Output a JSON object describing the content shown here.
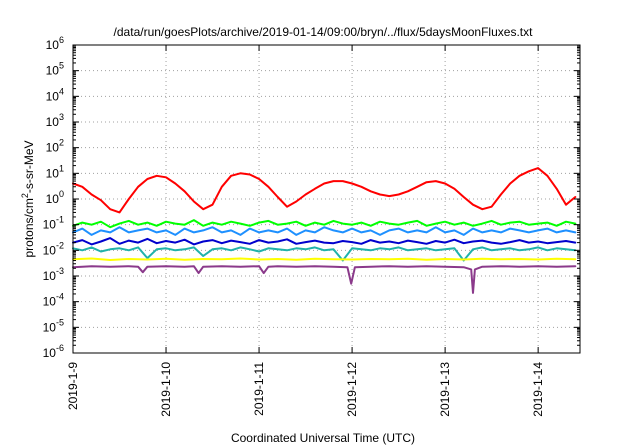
{
  "chart_data": {
    "type": "line",
    "title": "/data/run/goesPlots/archive/2019-01-14/09:00/bryn/../flux/5daysMoonFluxes.txt",
    "xlabel": "Coordinated Universal Time (UTC)",
    "ylabel": "protons/cm²-s-sr-MeV",
    "ylabel_parts": {
      "pre": "protons/cm",
      "sup": "2",
      "post": "-s-sr-MeV"
    },
    "yscale": "log",
    "ylim": [
      1e-06,
      1000000.0
    ],
    "xlim": [
      0,
      5.45
    ],
    "x_unit": "days since 2019-01-09 00:00 UTC",
    "grid": true,
    "legend": "none",
    "x_ticks": [
      {
        "pos": 0,
        "label": "2019-1-9"
      },
      {
        "pos": 1,
        "label": "2019-1-10"
      },
      {
        "pos": 2,
        "label": "2019-1-11"
      },
      {
        "pos": 3,
        "label": "2019-1-12"
      },
      {
        "pos": 4,
        "label": "2019-1-13"
      },
      {
        "pos": 5,
        "label": "2019-1-14"
      }
    ],
    "y_ticks": [
      {
        "exp": -6,
        "label_base": "10",
        "label_exp": "-6"
      },
      {
        "exp": -5,
        "label_base": "10",
        "label_exp": "-5"
      },
      {
        "exp": -4,
        "label_base": "10",
        "label_exp": "-4"
      },
      {
        "exp": -3,
        "label_base": "10",
        "label_exp": "-3"
      },
      {
        "exp": -2,
        "label_base": "10",
        "label_exp": "-2"
      },
      {
        "exp": -1,
        "label_base": "10",
        "label_exp": "-1"
      },
      {
        "exp": 0,
        "label_base": "10",
        "label_exp": "0"
      },
      {
        "exp": 1,
        "label_base": "10",
        "label_exp": "1"
      },
      {
        "exp": 2,
        "label_base": "10",
        "label_exp": "2"
      },
      {
        "exp": 3,
        "label_base": "10",
        "label_exp": "3"
      },
      {
        "exp": 4,
        "label_base": "10",
        "label_exp": "4"
      },
      {
        "exp": 5,
        "label_base": "10",
        "label_exp": "5"
      },
      {
        "exp": 6,
        "label_base": "10",
        "label_exp": "6"
      }
    ],
    "series": [
      {
        "color": "#ff0000",
        "x": [
          0,
          0.1,
          0.2,
          0.3,
          0.4,
          0.5,
          0.6,
          0.7,
          0.8,
          0.9,
          1.0,
          1.1,
          1.2,
          1.3,
          1.4,
          1.5,
          1.6,
          1.7,
          1.8,
          1.9,
          2.0,
          2.1,
          2.2,
          2.3,
          2.4,
          2.5,
          2.6,
          2.7,
          2.8,
          2.9,
          3.0,
          3.1,
          3.2,
          3.3,
          3.4,
          3.5,
          3.6,
          3.7,
          3.8,
          3.9,
          4.0,
          4.1,
          4.2,
          4.3,
          4.4,
          4.5,
          4.6,
          4.7,
          4.8,
          4.9,
          5.0,
          5.1,
          5.2,
          5.3,
          5.4
        ],
        "values": [
          4,
          3,
          1.5,
          0.9,
          0.4,
          0.3,
          1.0,
          3,
          6,
          8,
          7,
          4,
          2,
          0.8,
          0.4,
          0.6,
          3,
          8,
          10,
          9,
          6,
          3,
          1.2,
          0.5,
          0.8,
          1.5,
          2.5,
          4,
          5,
          5,
          4,
          3,
          2,
          1.5,
          1.3,
          1.5,
          2,
          3,
          4.5,
          5,
          4,
          2.5,
          1.2,
          0.6,
          0.4,
          0.5,
          1.5,
          4,
          8,
          12,
          16,
          8,
          2.5,
          0.6,
          1.2
        ]
      },
      {
        "color": "#00ff00",
        "x": [
          0,
          0.1,
          0.2,
          0.3,
          0.4,
          0.5,
          0.6,
          0.7,
          0.8,
          0.9,
          1.0,
          1.1,
          1.2,
          1.3,
          1.4,
          1.5,
          1.6,
          1.7,
          1.8,
          1.9,
          2.0,
          2.1,
          2.2,
          2.3,
          2.4,
          2.5,
          2.6,
          2.7,
          2.8,
          2.9,
          3.0,
          3.1,
          3.2,
          3.3,
          3.4,
          3.5,
          3.6,
          3.7,
          3.8,
          3.9,
          4.0,
          4.1,
          4.2,
          4.3,
          4.4,
          4.5,
          4.6,
          4.7,
          4.8,
          4.9,
          5.0,
          5.1,
          5.2,
          5.3,
          5.4
        ],
        "values": [
          0.09,
          0.12,
          0.1,
          0.13,
          0.08,
          0.11,
          0.14,
          0.1,
          0.12,
          0.09,
          0.13,
          0.11,
          0.1,
          0.15,
          0.09,
          0.12,
          0.1,
          0.13,
          0.11,
          0.09,
          0.12,
          0.14,
          0.1,
          0.11,
          0.13,
          0.09,
          0.12,
          0.1,
          0.14,
          0.11,
          0.1,
          0.12,
          0.09,
          0.13,
          0.11,
          0.1,
          0.12,
          0.14,
          0.09,
          0.11,
          0.13,
          0.1,
          0.12,
          0.09,
          0.11,
          0.14,
          0.1,
          0.12,
          0.13,
          0.1,
          0.11,
          0.12,
          0.09,
          0.13,
          0.11
        ]
      },
      {
        "color": "#1e90ff",
        "x": [
          0,
          0.1,
          0.2,
          0.3,
          0.4,
          0.5,
          0.6,
          0.7,
          0.8,
          0.9,
          1.0,
          1.1,
          1.2,
          1.3,
          1.4,
          1.5,
          1.6,
          1.7,
          1.8,
          1.9,
          2.0,
          2.1,
          2.2,
          2.3,
          2.4,
          2.5,
          2.6,
          2.7,
          2.8,
          2.9,
          3.0,
          3.1,
          3.2,
          3.3,
          3.4,
          3.5,
          3.6,
          3.7,
          3.8,
          3.9,
          4.0,
          4.1,
          4.2,
          4.3,
          4.4,
          4.5,
          4.6,
          4.7,
          4.8,
          4.9,
          5.0,
          5.1,
          5.2,
          5.3,
          5.4
        ],
        "values": [
          0.05,
          0.07,
          0.04,
          0.06,
          0.05,
          0.08,
          0.05,
          0.06,
          0.07,
          0.05,
          0.06,
          0.04,
          0.07,
          0.05,
          0.06,
          0.08,
          0.05,
          0.06,
          0.04,
          0.07,
          0.05,
          0.06,
          0.05,
          0.07,
          0.04,
          0.06,
          0.05,
          0.08,
          0.06,
          0.05,
          0.07,
          0.05,
          0.06,
          0.04,
          0.06,
          0.07,
          0.05,
          0.06,
          0.05,
          0.08,
          0.05,
          0.06,
          0.04,
          0.07,
          0.05,
          0.06,
          0.05,
          0.07,
          0.06,
          0.05,
          0.06,
          0.07,
          0.05,
          0.06,
          0.05
        ]
      },
      {
        "color": "#0000cd",
        "x": [
          0,
          0.1,
          0.2,
          0.3,
          0.4,
          0.5,
          0.6,
          0.7,
          0.8,
          0.9,
          1.0,
          1.1,
          1.2,
          1.3,
          1.4,
          1.5,
          1.6,
          1.7,
          1.8,
          1.9,
          2.0,
          2.1,
          2.2,
          2.3,
          2.4,
          2.5,
          2.6,
          2.7,
          2.8,
          2.9,
          3.0,
          3.1,
          3.2,
          3.3,
          3.4,
          3.5,
          3.6,
          3.7,
          3.8,
          3.9,
          4.0,
          4.1,
          4.2,
          4.3,
          4.4,
          4.5,
          4.6,
          4.7,
          4.8,
          4.9,
          5.0,
          5.1,
          5.2,
          5.3,
          5.4
        ],
        "values": [
          0.02,
          0.025,
          0.017,
          0.022,
          0.03,
          0.018,
          0.024,
          0.02,
          0.028,
          0.019,
          0.023,
          0.02,
          0.026,
          0.017,
          0.022,
          0.025,
          0.019,
          0.024,
          0.021,
          0.018,
          0.025,
          0.02,
          0.022,
          0.027,
          0.018,
          0.021,
          0.024,
          0.02,
          0.019,
          0.023,
          0.021,
          0.018,
          0.025,
          0.02,
          0.022,
          0.019,
          0.024,
          0.021,
          0.018,
          0.023,
          0.02,
          0.026,
          0.019,
          0.022,
          0.024,
          0.02,
          0.018,
          0.021,
          0.025,
          0.02,
          0.022,
          0.019,
          0.021,
          0.023,
          0.02
        ]
      },
      {
        "color": "#20b2aa",
        "x": [
          0,
          0.1,
          0.2,
          0.3,
          0.4,
          0.5,
          0.6,
          0.7,
          0.8,
          0.9,
          1.0,
          1.1,
          1.2,
          1.3,
          1.4,
          1.5,
          1.6,
          1.7,
          1.8,
          1.9,
          2.0,
          2.1,
          2.2,
          2.3,
          2.4,
          2.5,
          2.6,
          2.7,
          2.8,
          2.9,
          3.0,
          3.1,
          3.2,
          3.3,
          3.4,
          3.5,
          3.6,
          3.7,
          3.8,
          3.9,
          4.0,
          4.1,
          4.2,
          4.3,
          4.4,
          4.5,
          4.6,
          4.7,
          4.8,
          4.9,
          5.0,
          5.1,
          5.2,
          5.3,
          5.4
        ],
        "values": [
          0.012,
          0.01,
          0.013,
          0.009,
          0.011,
          0.012,
          0.01,
          0.013,
          0.005,
          0.011,
          0.012,
          0.01,
          0.011,
          0.013,
          0.006,
          0.011,
          0.012,
          0.01,
          0.013,
          0.011,
          0.009,
          0.012,
          0.011,
          0.01,
          0.012,
          0.011,
          0.013,
          0.01,
          0.011,
          0.004,
          0.012,
          0.011,
          0.01,
          0.012,
          0.011,
          0.013,
          0.01,
          0.011,
          0.012,
          0.01,
          0.011,
          0.012,
          0.004,
          0.011,
          0.013,
          0.01,
          0.011,
          0.012,
          0.01,
          0.011,
          0.013,
          0.01,
          0.012,
          0.011,
          0.01
        ]
      },
      {
        "color": "#ffff00",
        "x": [
          0,
          0.2,
          0.4,
          0.6,
          0.8,
          1.0,
          1.2,
          1.4,
          1.6,
          1.8,
          2.0,
          2.2,
          2.4,
          2.6,
          2.8,
          3.0,
          3.2,
          3.4,
          3.6,
          3.8,
          4.0,
          4.2,
          4.4,
          4.6,
          4.8,
          5.0,
          5.2,
          5.4
        ],
        "values": [
          0.0045,
          0.0048,
          0.0042,
          0.0046,
          0.0044,
          0.0047,
          0.0043,
          0.0046,
          0.0045,
          0.0048,
          0.0044,
          0.0046,
          0.0043,
          0.0047,
          0.0045,
          0.0044,
          0.0046,
          0.0045,
          0.0047,
          0.0043,
          0.0046,
          0.0044,
          0.0047,
          0.0045,
          0.0046,
          0.0044,
          0.0047,
          0.0045
        ]
      },
      {
        "color": "#8b3a8b",
        "x": [
          0,
          0.2,
          0.4,
          0.6,
          0.7,
          0.75,
          0.8,
          1.0,
          1.2,
          1.3,
          1.35,
          1.4,
          1.6,
          1.8,
          2.0,
          2.05,
          2.1,
          2.2,
          2.4,
          2.6,
          2.8,
          2.95,
          2.99,
          3.03,
          3.2,
          3.4,
          3.6,
          3.8,
          4.0,
          4.2,
          4.28,
          4.3,
          4.32,
          4.4,
          4.6,
          4.8,
          5.0,
          5.2,
          5.4
        ],
        "values": [
          0.0022,
          0.0024,
          0.0023,
          0.0024,
          0.0023,
          0.0014,
          0.0023,
          0.0024,
          0.0023,
          0.0024,
          0.0013,
          0.0023,
          0.0024,
          0.0023,
          0.0024,
          0.0013,
          0.0023,
          0.0024,
          0.0023,
          0.0024,
          0.0023,
          0.0022,
          0.0005,
          0.0022,
          0.0023,
          0.0024,
          0.0023,
          0.0024,
          0.0023,
          0.0022,
          0.0018,
          0.00022,
          0.0018,
          0.0023,
          0.0024,
          0.0023,
          0.0024,
          0.0023,
          0.0024
        ]
      }
    ]
  }
}
